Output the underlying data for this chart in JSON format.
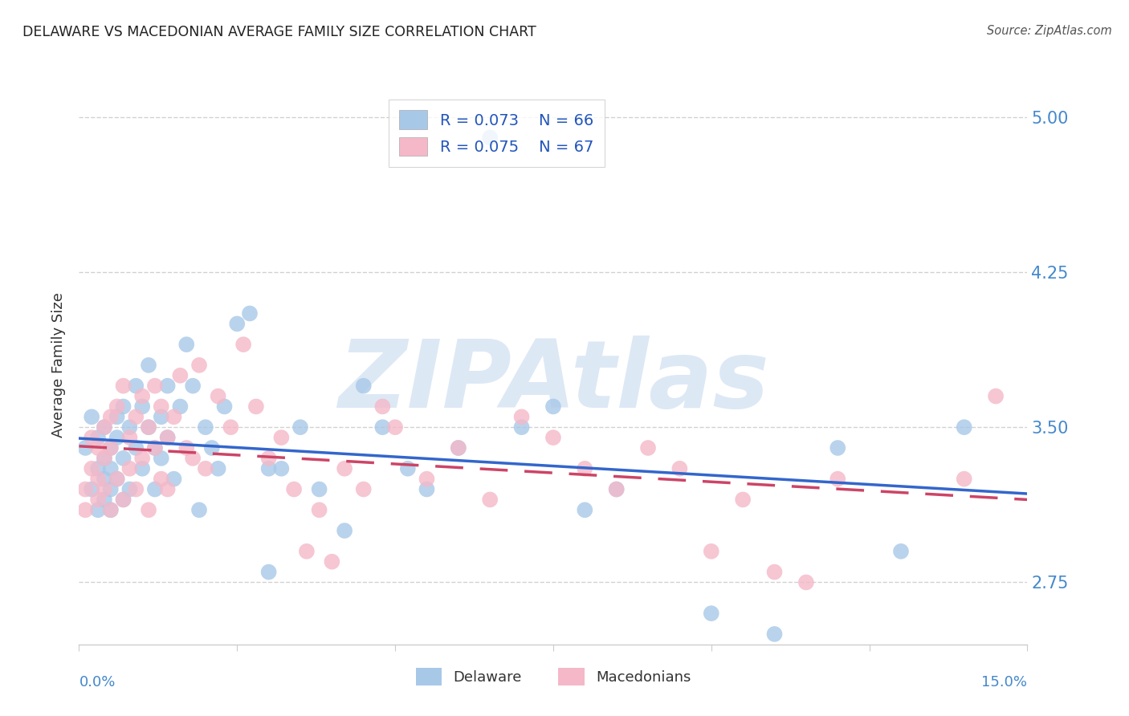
{
  "title": "DELAWARE VS MACEDONIAN AVERAGE FAMILY SIZE CORRELATION CHART",
  "source": "Source: ZipAtlas.com",
  "ylabel": "Average Family Size",
  "watermark": "ZIPAtlas",
  "ymin": 2.45,
  "ymax": 5.15,
  "xmin": 0.0,
  "xmax": 0.15,
  "yticks": [
    2.75,
    3.5,
    4.25,
    5.0
  ],
  "xticks": [
    0.0,
    0.025,
    0.05,
    0.075,
    0.1,
    0.125,
    0.15
  ],
  "legend_blue_r": "R = 0.073",
  "legend_blue_n": "N = 66",
  "legend_pink_r": "R = 0.075",
  "legend_pink_n": "N = 67",
  "legend_blue_label": "Delaware",
  "legend_pink_label": "Macedonians",
  "blue_color": "#a8c8e8",
  "pink_color": "#f4b8c8",
  "blue_line_color": "#3366cc",
  "pink_line_color": "#cc4466",
  "title_color": "#222222",
  "source_color": "#555555",
  "grid_color": "#cccccc",
  "watermark_color": "#dde8f5",
  "tick_color": "#4488cc",
  "background_color": "#ffffff",
  "blue_scatter_x": [
    0.001,
    0.002,
    0.002,
    0.003,
    0.003,
    0.003,
    0.004,
    0.004,
    0.004,
    0.004,
    0.005,
    0.005,
    0.005,
    0.005,
    0.006,
    0.006,
    0.006,
    0.007,
    0.007,
    0.007,
    0.008,
    0.008,
    0.009,
    0.009,
    0.01,
    0.01,
    0.011,
    0.011,
    0.012,
    0.012,
    0.013,
    0.013,
    0.014,
    0.014,
    0.015,
    0.016,
    0.017,
    0.018,
    0.019,
    0.02,
    0.021,
    0.022,
    0.023,
    0.025,
    0.027,
    0.03,
    0.03,
    0.032,
    0.035,
    0.038,
    0.042,
    0.045,
    0.048,
    0.052,
    0.055,
    0.06,
    0.065,
    0.07,
    0.075,
    0.08,
    0.085,
    0.1,
    0.11,
    0.12,
    0.13,
    0.14
  ],
  "blue_scatter_y": [
    3.4,
    3.55,
    3.2,
    3.3,
    3.1,
    3.45,
    3.35,
    3.25,
    3.15,
    3.5,
    3.4,
    3.2,
    3.3,
    3.1,
    3.55,
    3.45,
    3.25,
    3.6,
    3.35,
    3.15,
    3.5,
    3.2,
    3.7,
    3.4,
    3.3,
    3.6,
    3.8,
    3.5,
    3.4,
    3.2,
    3.55,
    3.35,
    3.7,
    3.45,
    3.25,
    3.6,
    3.9,
    3.7,
    3.1,
    3.5,
    3.4,
    3.3,
    3.6,
    4.0,
    4.05,
    3.3,
    2.8,
    3.3,
    3.5,
    3.2,
    3.0,
    3.7,
    3.5,
    3.3,
    3.2,
    3.4,
    4.9,
    3.5,
    3.6,
    3.1,
    3.2,
    2.6,
    2.5,
    3.4,
    2.9,
    3.5
  ],
  "pink_scatter_x": [
    0.001,
    0.001,
    0.002,
    0.002,
    0.003,
    0.003,
    0.003,
    0.004,
    0.004,
    0.004,
    0.005,
    0.005,
    0.005,
    0.006,
    0.006,
    0.007,
    0.007,
    0.008,
    0.008,
    0.009,
    0.009,
    0.01,
    0.01,
    0.011,
    0.011,
    0.012,
    0.012,
    0.013,
    0.013,
    0.014,
    0.014,
    0.015,
    0.016,
    0.017,
    0.018,
    0.019,
    0.02,
    0.022,
    0.024,
    0.026,
    0.028,
    0.03,
    0.032,
    0.034,
    0.036,
    0.038,
    0.04,
    0.042,
    0.045,
    0.048,
    0.05,
    0.055,
    0.06,
    0.065,
    0.07,
    0.075,
    0.08,
    0.085,
    0.09,
    0.095,
    0.1,
    0.105,
    0.11,
    0.115,
    0.12,
    0.14,
    0.145
  ],
  "pink_scatter_y": [
    3.2,
    3.1,
    3.45,
    3.3,
    3.15,
    3.4,
    3.25,
    3.5,
    3.35,
    3.2,
    3.55,
    3.4,
    3.1,
    3.6,
    3.25,
    3.7,
    3.15,
    3.45,
    3.3,
    3.55,
    3.2,
    3.65,
    3.35,
    3.5,
    3.1,
    3.7,
    3.4,
    3.25,
    3.6,
    3.45,
    3.2,
    3.55,
    3.75,
    3.4,
    3.35,
    3.8,
    3.3,
    3.65,
    3.5,
    3.9,
    3.6,
    3.35,
    3.45,
    3.2,
    2.9,
    3.1,
    2.85,
    3.3,
    3.2,
    3.6,
    3.5,
    3.25,
    3.4,
    3.15,
    3.55,
    3.45,
    3.3,
    3.2,
    3.4,
    3.3,
    2.9,
    3.15,
    2.8,
    2.75,
    3.25,
    3.25,
    3.65
  ]
}
